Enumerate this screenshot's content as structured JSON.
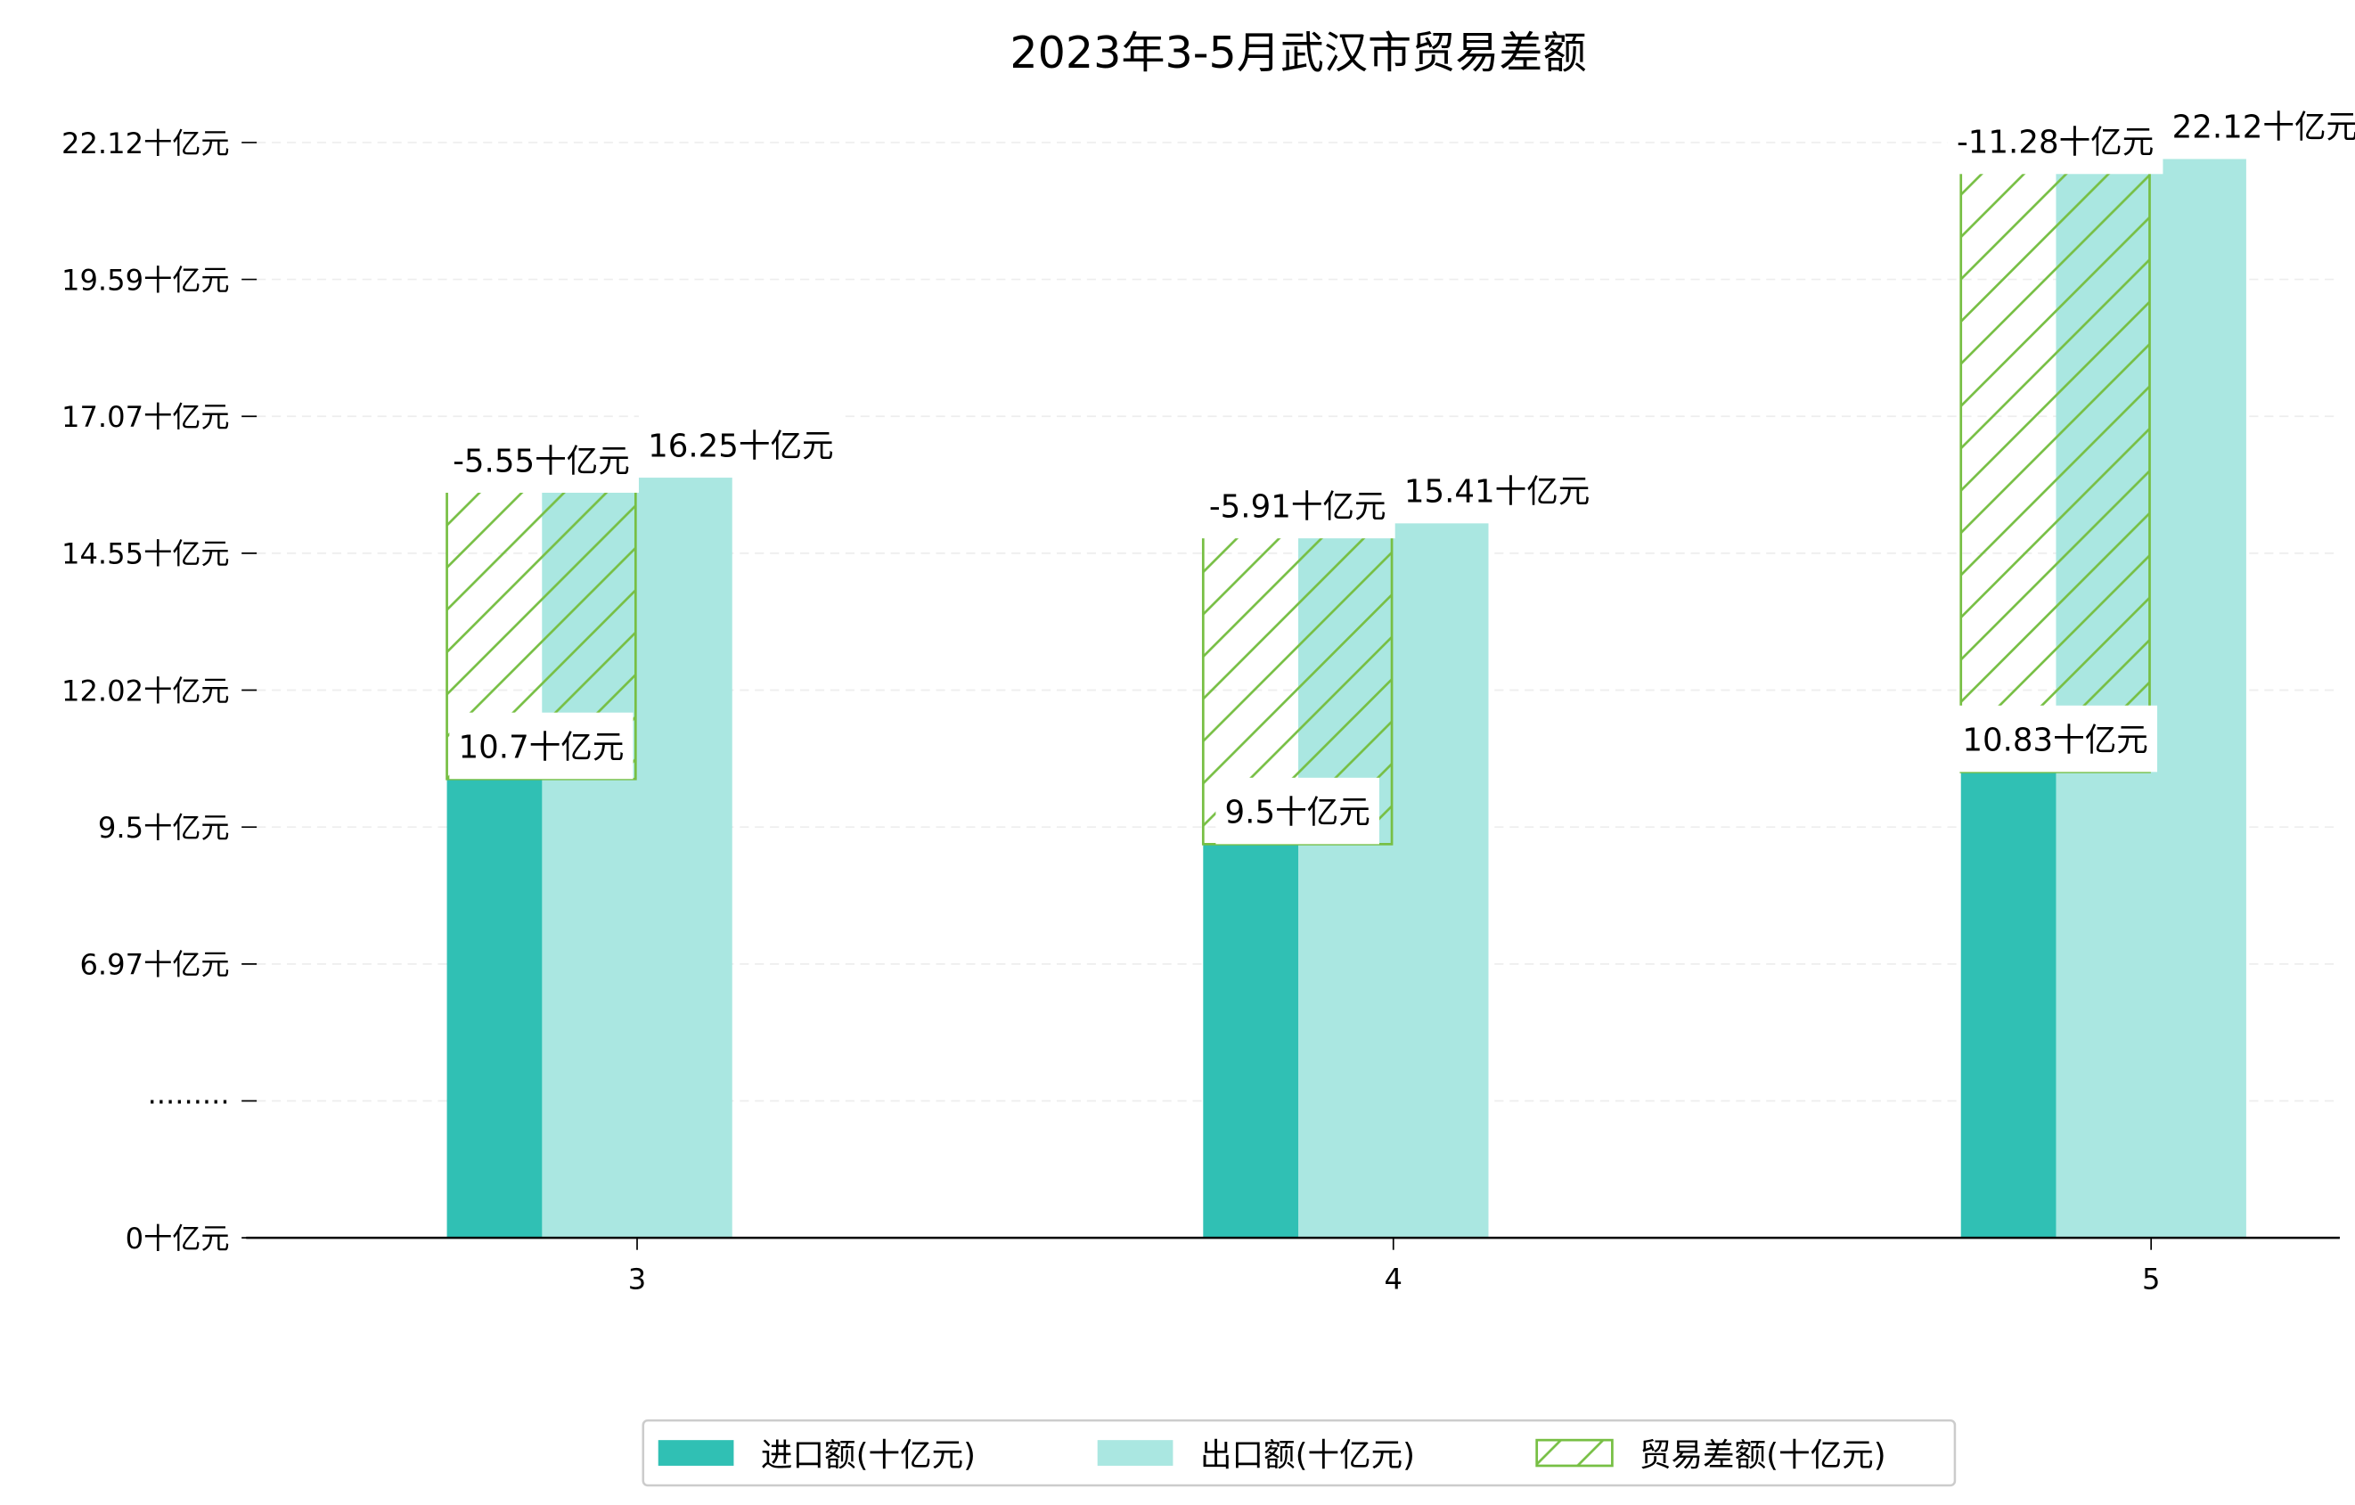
{
  "chart_data": {
    "type": "bar",
    "title": "2023年3-5月武汉市贸易差额",
    "xlabel": "",
    "ylabel": "",
    "categories": [
      "3",
      "4",
      "5"
    ],
    "series": [
      {
        "name": "进口额(十亿元)",
        "values": [
          10.7,
          9.5,
          10.83
        ],
        "labels": [
          "10.7十亿元",
          "9.5十亿元",
          "10.83十亿元"
        ],
        "color": "#30c0b4"
      },
      {
        "name": "出口额(十亿元)",
        "values": [
          16.25,
          15.41,
          22.12
        ],
        "labels": [
          "16.25十亿元",
          "15.41十亿元",
          "22.12十亿元"
        ],
        "color": "#aae7e1"
      },
      {
        "name": "贸易差额(十亿元)",
        "values": [
          -5.55,
          -5.91,
          -11.28
        ],
        "labels": [
          "-5.55十亿元",
          "-5.91十亿元",
          "-11.28十亿元"
        ],
        "color": "#77bf44",
        "pattern": "hatch"
      }
    ],
    "yticks": [
      "0十亿元",
      "·········",
      "6.97十亿元",
      "9.5十亿元",
      "12.02十亿元",
      "14.55十亿元",
      "17.07十亿元",
      "19.59十亿元",
      "22.12十亿元"
    ],
    "axis_break": true,
    "grid": true,
    "legend_position": "bottom-center"
  }
}
